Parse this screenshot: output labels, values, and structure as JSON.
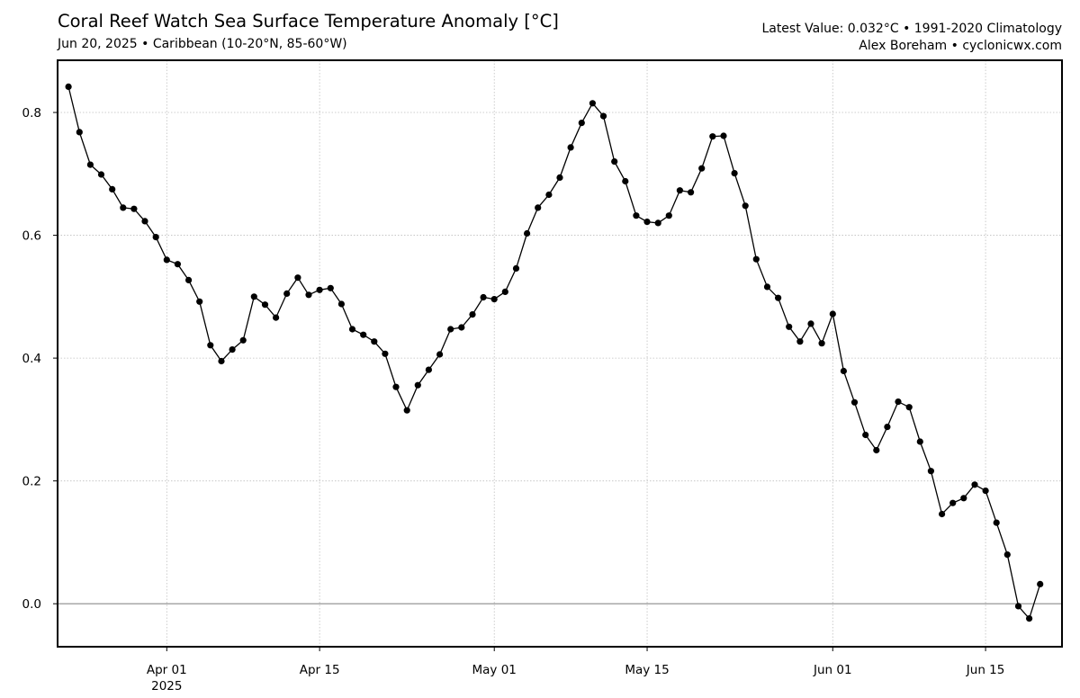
{
  "header": {
    "title": "Coral Reef Watch Sea Surface Temperature Anomaly [°C]",
    "subtitle": "Jun 20, 2025 • Caribbean (10-20°N, 85-60°W)",
    "latest": "Latest Value: 0.032°C • 1991-2020 Climatology",
    "credit": "Alex Boreham • cyclonicwx.com"
  },
  "chart_data": {
    "type": "line",
    "title": "Coral Reef Watch Sea Surface Temperature Anomaly [°C]",
    "subtitle": "Jun 20, 2025 • Caribbean (10-20°N, 85-60°W)",
    "xlabel": "",
    "ylabel": "",
    "x_start": "2025-03-23",
    "x_end": "2025-06-20",
    "xlim": [
      "2025-03-22",
      "2025-06-22"
    ],
    "ylim": [
      -0.07,
      0.885
    ],
    "yticks": [
      {
        "value": 0.0,
        "label": "0.0"
      },
      {
        "value": 0.2,
        "label": "0.2"
      },
      {
        "value": 0.4,
        "label": "0.4"
      },
      {
        "value": 0.6,
        "label": "0.6"
      },
      {
        "value": 0.8,
        "label": "0.8"
      }
    ],
    "xticks": [
      {
        "date": "2025-04-01",
        "label": "Apr 01",
        "sublabel": "2025"
      },
      {
        "date": "2025-04-15",
        "label": "Apr 15",
        "sublabel": ""
      },
      {
        "date": "2025-05-01",
        "label": "May 01",
        "sublabel": ""
      },
      {
        "date": "2025-05-15",
        "label": "May 15",
        "sublabel": ""
      },
      {
        "date": "2025-06-01",
        "label": "Jun 01",
        "sublabel": ""
      },
      {
        "date": "2025-06-15",
        "label": "Jun 15",
        "sublabel": ""
      }
    ],
    "grid": true,
    "zero_line": true,
    "series": [
      {
        "color": "#000000",
        "values": [
          0.842,
          0.768,
          0.715,
          0.699,
          0.675,
          0.645,
          0.643,
          0.623,
          0.597,
          0.56,
          0.553,
          0.527,
          0.492,
          0.421,
          0.395,
          0.414,
          0.429,
          0.5,
          0.487,
          0.466,
          0.505,
          0.531,
          0.503,
          0.511,
          0.514,
          0.488,
          0.447,
          0.438,
          0.427,
          0.407,
          0.353,
          0.315,
          0.356,
          0.381,
          0.406,
          0.447,
          0.45,
          0.471,
          0.499,
          0.496,
          0.508,
          0.546,
          0.603,
          0.645,
          0.666,
          0.694,
          0.743,
          0.783,
          0.815,
          0.794,
          0.72,
          0.688,
          0.632,
          0.622,
          0.62,
          0.632,
          0.673,
          0.67,
          0.709,
          0.761,
          0.762,
          0.701,
          0.648,
          0.561,
          0.516,
          0.498,
          0.451,
          0.427,
          0.456,
          0.424,
          0.472,
          0.379,
          0.328,
          0.275,
          0.25,
          0.288,
          0.329,
          0.32,
          0.264,
          0.216,
          0.146,
          0.164,
          0.172,
          0.194,
          0.184,
          0.132,
          0.08,
          -0.004,
          -0.024,
          0.032
        ]
      }
    ]
  }
}
